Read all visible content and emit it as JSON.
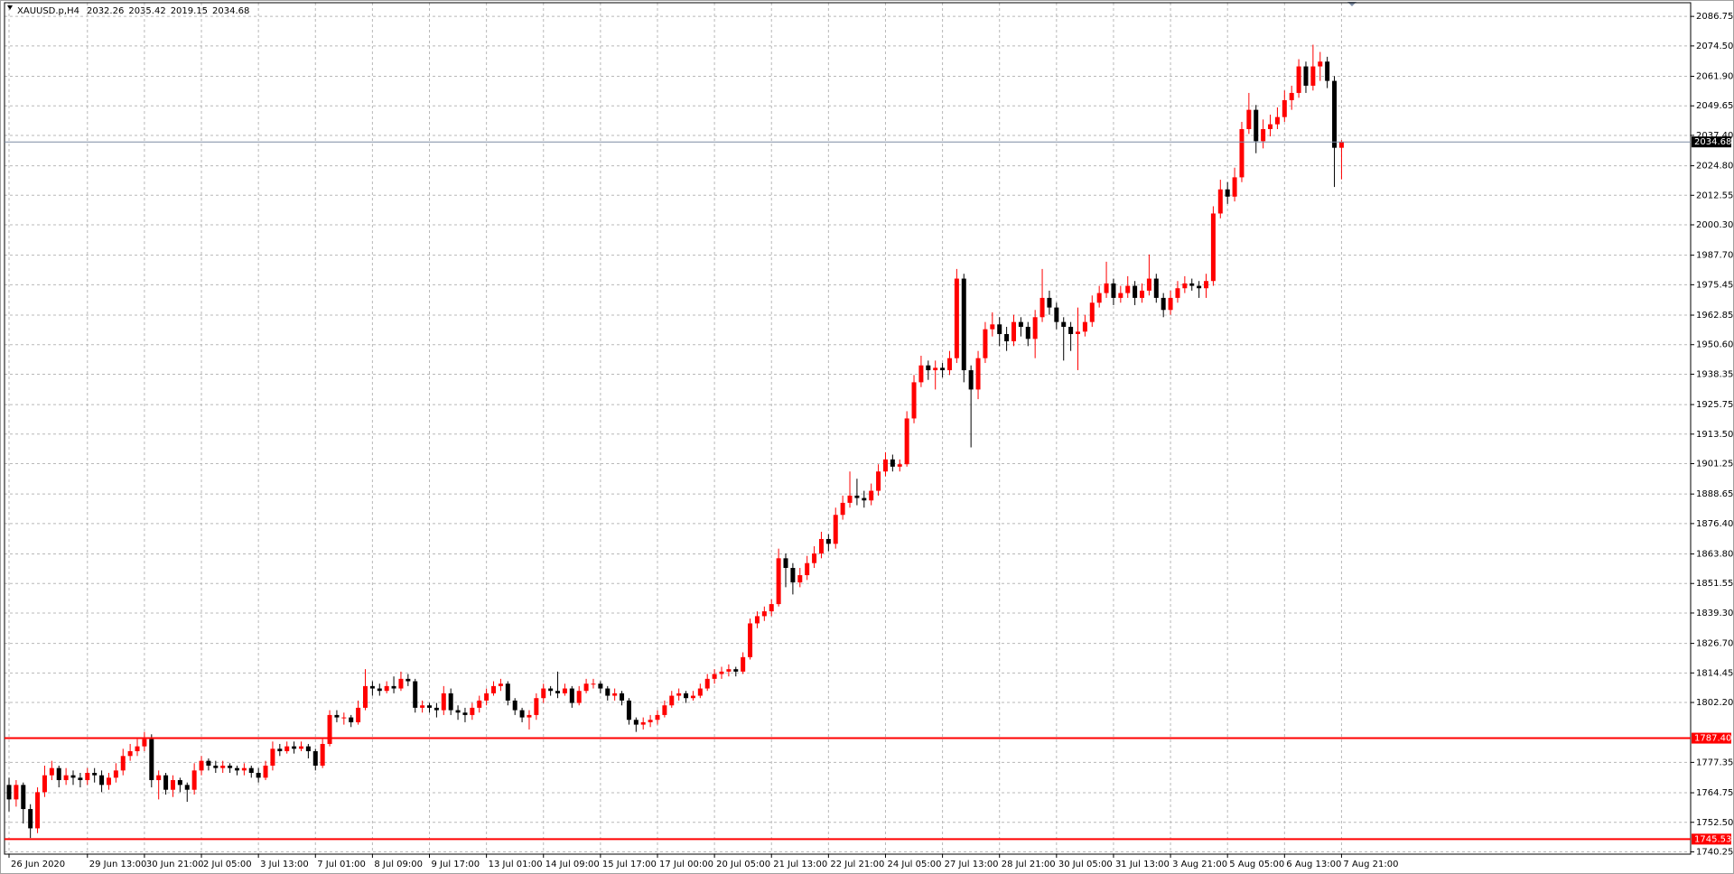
{
  "chart_data": {
    "type": "candlestick",
    "symbol": "XAUUSD.p,H4",
    "up_color": "#ff0000",
    "down_color": "#000000",
    "grid": true,
    "ylim": [
      1739.3,
      2091.3
    ],
    "yticks": [
      2086.75,
      {
        "value": 2074.5,
        "label": "2074.50"
      },
      {
        "value": 2061.9,
        "label": "2061.90"
      },
      2049.65,
      {
        "value": 2037.4,
        "label": "2037.40"
      },
      {
        "value": 2024.8,
        "label": "2024.80"
      },
      2012.55,
      {
        "value": 2000.3,
        "label": "2000.30"
      },
      {
        "value": 1987.7,
        "label": "1987.70"
      },
      1975.45,
      1962.85,
      {
        "value": 1950.6,
        "label": "1950.60"
      },
      1938.35,
      1925.75,
      {
        "value": 1913.5,
        "label": "1913.50"
      },
      1901.25,
      1888.65,
      {
        "value": 1876.4,
        "label": "1876.40"
      },
      {
        "value": 1863.8,
        "label": "1863.80"
      },
      1851.55,
      {
        "value": 1839.3,
        "label": "1839.30"
      },
      {
        "value": 1826.7,
        "label": "1826.70"
      },
      1814.45,
      {
        "value": 1802.2,
        "label": "1802.20"
      },
      1777.35,
      1764.75,
      {
        "value": 1752.5,
        "label": "1752.50"
      },
      1740.25
    ],
    "levels": [
      {
        "value": 1787.4,
        "label": "1787.40",
        "color": "#ff0000"
      },
      {
        "value": 1745.53,
        "color": "#ff0000"
      }
    ],
    "current_color": "#7d8ca3",
    "categories": [
      "26 Jun 2020",
      null,
      null,
      null,
      null,
      null,
      null,
      null,
      null,
      null,
      null,
      "29 Jun 13:00",
      null,
      null,
      null,
      null,
      null,
      null,
      null,
      "30 Jun 21:00",
      null,
      null,
      null,
      null,
      null,
      null,
      null,
      "2 Jul 05:00",
      null,
      null,
      null,
      null,
      null,
      null,
      null,
      "3 Jul 13:00",
      null,
      null,
      null,
      null,
      null,
      null,
      null,
      "7 Jul 01:00",
      null,
      null,
      null,
      null,
      null,
      null,
      null,
      "8 Jul 09:00",
      null,
      null,
      null,
      null,
      null,
      null,
      null,
      "9 Jul 17:00",
      null,
      null,
      null,
      null,
      null,
      null,
      null,
      "13 Jul 01:00",
      null,
      null,
      null,
      null,
      null,
      null,
      null,
      "14 Jul 09:00",
      null,
      null,
      null,
      null,
      null,
      null,
      null,
      "15 Jul 17:00",
      null,
      null,
      null,
      null,
      null,
      null,
      null,
      "17 Jul 00:00",
      null,
      null,
      null,
      null,
      null,
      null,
      null,
      "20 Jul 05:00",
      null,
      null,
      null,
      null,
      null,
      null,
      null,
      "21 Jul 13:00",
      null,
      null,
      null,
      null,
      null,
      null,
      null,
      "22 Jul 21:00",
      null,
      null,
      null,
      null,
      null,
      null,
      null,
      "24 Jul 05:00",
      null,
      null,
      null,
      null,
      null,
      null,
      null,
      "27 Jul 13:00",
      null,
      null,
      null,
      null,
      null,
      null,
      null,
      "28 Jul 21:00",
      null,
      null,
      null,
      null,
      null,
      null,
      null,
      "30 Jul 05:00",
      null,
      null,
      null,
      null,
      null,
      null,
      null,
      "31 Jul 13:00",
      null,
      null,
      null,
      null,
      null,
      null,
      null,
      "3 Aug 21:00",
      null,
      null,
      null,
      null,
      null,
      null,
      null,
      "5 Aug 05:00",
      null,
      null,
      null,
      null,
      null,
      null,
      null,
      "6 Aug 13:00",
      null,
      null,
      null,
      null,
      null,
      null,
      null,
      "7 Aug 21:00"
    ],
    "candles": [
      [
        1768,
        1771,
        1757,
        1762
      ],
      [
        1762,
        1770,
        1759,
        1768
      ],
      [
        1768,
        1769,
        1752,
        1758
      ],
      [
        1758,
        1760,
        1746,
        1750
      ],
      [
        1750,
        1767,
        1748,
        1765
      ],
      [
        1765,
        1776,
        1763,
        1772
      ],
      [
        1772,
        1778,
        1770,
        1775
      ],
      [
        1775,
        1776,
        1767,
        1770
      ],
      [
        1770,
        1775,
        1768,
        1772
      ],
      [
        1772,
        1774,
        1768,
        1771
      ],
      [
        1771,
        1773,
        1767,
        1770
      ],
      [
        1770,
        1775,
        1768,
        1773
      ],
      [
        1773,
        1775,
        1769,
        1772
      ],
      [
        1772,
        1774,
        1765,
        1768
      ],
      [
        1768,
        1773,
        1766,
        1771
      ],
      [
        1771,
        1777,
        1769,
        1774
      ],
      [
        1774,
        1783,
        1772,
        1780
      ],
      [
        1780,
        1785,
        1778,
        1782
      ],
      [
        1782,
        1787,
        1780,
        1784
      ],
      [
        1784,
        1790,
        1782,
        1787
      ],
      [
        1787,
        1789,
        1767,
        1770
      ],
      [
        1770,
        1774,
        1762,
        1772
      ],
      [
        1772,
        1773,
        1764,
        1766
      ],
      [
        1766,
        1772,
        1763,
        1770
      ],
      [
        1770,
        1771,
        1765,
        1768
      ],
      [
        1768,
        1769,
        1761,
        1766
      ],
      [
        1766,
        1777,
        1764,
        1774
      ],
      [
        1774,
        1780,
        1772,
        1778
      ],
      [
        1778,
        1779,
        1774,
        1776
      ],
      [
        1776,
        1778,
        1773,
        1775
      ],
      [
        1775,
        1778,
        1773,
        1776
      ],
      [
        1776,
        1777,
        1773,
        1775
      ],
      [
        1775,
        1776,
        1772,
        1774
      ],
      [
        1774,
        1777,
        1772,
        1775
      ],
      [
        1775,
        1776,
        1771,
        1773
      ],
      [
        1773,
        1775,
        1769,
        1771
      ],
      [
        1771,
        1778,
        1770,
        1776
      ],
      [
        1776,
        1786,
        1774,
        1783
      ],
      [
        1783,
        1785,
        1780,
        1782
      ],
      [
        1782,
        1786,
        1781,
        1784
      ],
      [
        1784,
        1786,
        1781,
        1783
      ],
      [
        1783,
        1786,
        1782,
        1784
      ],
      [
        1784,
        1785,
        1779,
        1782
      ],
      [
        1782,
        1783,
        1774,
        1776
      ],
      [
        1776,
        1787,
        1775,
        1785
      ],
      [
        1785,
        1799,
        1784,
        1797
      ],
      [
        1797,
        1799,
        1794,
        1796
      ],
      [
        1796,
        1798,
        1793,
        1796
      ],
      [
        1796,
        1797,
        1792,
        1794
      ],
      [
        1794,
        1803,
        1793,
        1800
      ],
      [
        1800,
        1816,
        1799,
        1809
      ],
      [
        1809,
        1811,
        1805,
        1808
      ],
      [
        1808,
        1810,
        1805,
        1807
      ],
      [
        1807,
        1811,
        1806,
        1809
      ],
      [
        1809,
        1813,
        1806,
        1808
      ],
      [
        1808,
        1815,
        1807,
        1812
      ],
      [
        1812,
        1814,
        1809,
        1811
      ],
      [
        1811,
        1812,
        1798,
        1800
      ],
      [
        1800,
        1803,
        1798,
        1801
      ],
      [
        1801,
        1802,
        1798,
        1800
      ],
      [
        1800,
        1802,
        1796,
        1799
      ],
      [
        1799,
        1809,
        1797,
        1806
      ],
      [
        1806,
        1808,
        1797,
        1799
      ],
      [
        1799,
        1801,
        1795,
        1798
      ],
      [
        1798,
        1800,
        1794,
        1797
      ],
      [
        1797,
        1802,
        1795,
        1800
      ],
      [
        1800,
        1805,
        1798,
        1803
      ],
      [
        1803,
        1808,
        1801,
        1806
      ],
      [
        1806,
        1811,
        1805,
        1809
      ],
      [
        1809,
        1812,
        1807,
        1810
      ],
      [
        1810,
        1811,
        1801,
        1803
      ],
      [
        1803,
        1804,
        1797,
        1799
      ],
      [
        1799,
        1800,
        1794,
        1796
      ],
      [
        1796,
        1799,
        1791,
        1797
      ],
      [
        1797,
        1806,
        1795,
        1804
      ],
      [
        1804,
        1810,
        1802,
        1808
      ],
      [
        1808,
        1809,
        1805,
        1807
      ],
      [
        1807,
        1815,
        1804,
        1806
      ],
      [
        1806,
        1810,
        1805,
        1808
      ],
      [
        1808,
        1809,
        1800,
        1802
      ],
      [
        1802,
        1809,
        1801,
        1807
      ],
      [
        1807,
        1812,
        1806,
        1810
      ],
      [
        1810,
        1812,
        1808,
        1810
      ],
      [
        1810,
        1811,
        1806,
        1808
      ],
      [
        1808,
        1809,
        1803,
        1805
      ],
      [
        1805,
        1808,
        1803,
        1806
      ],
      [
        1806,
        1807,
        1801,
        1803
      ],
      [
        1803,
        1804,
        1793,
        1795
      ],
      [
        1795,
        1796,
        1790,
        1793
      ],
      [
        1793,
        1796,
        1791,
        1794
      ],
      [
        1794,
        1797,
        1792,
        1795
      ],
      [
        1795,
        1799,
        1793,
        1797
      ],
      [
        1797,
        1803,
        1796,
        1801
      ],
      [
        1801,
        1807,
        1800,
        1805
      ],
      [
        1805,
        1808,
        1803,
        1806
      ],
      [
        1806,
        1807,
        1802,
        1804
      ],
      [
        1804,
        1807,
        1803,
        1805
      ],
      [
        1805,
        1810,
        1804,
        1808
      ],
      [
        1808,
        1814,
        1807,
        1812
      ],
      [
        1812,
        1816,
        1810,
        1814
      ],
      [
        1814,
        1817,
        1812,
        1815
      ],
      [
        1815,
        1818,
        1813,
        1816
      ],
      [
        1816,
        1817,
        1813,
        1815
      ],
      [
        1815,
        1823,
        1814,
        1821
      ],
      [
        1821,
        1837,
        1820,
        1835
      ],
      [
        1835,
        1840,
        1833,
        1838
      ],
      [
        1838,
        1842,
        1836,
        1840
      ],
      [
        1840,
        1845,
        1838,
        1843
      ],
      [
        1843,
        1866,
        1842,
        1862
      ],
      [
        1862,
        1864,
        1850,
        1858
      ],
      [
        1858,
        1860,
        1847,
        1852
      ],
      [
        1852,
        1858,
        1850,
        1855
      ],
      [
        1855,
        1863,
        1853,
        1860
      ],
      [
        1860,
        1867,
        1858,
        1864
      ],
      [
        1864,
        1873,
        1862,
        1870
      ],
      [
        1870,
        1872,
        1865,
        1868
      ],
      [
        1868,
        1883,
        1866,
        1880
      ],
      [
        1880,
        1888,
        1878,
        1885
      ],
      [
        1885,
        1898,
        1883,
        1888
      ],
      [
        1888,
        1895,
        1884,
        1887
      ],
      [
        1887,
        1890,
        1883,
        1886
      ],
      [
        1886,
        1893,
        1884,
        1890
      ],
      [
        1890,
        1901,
        1888,
        1898
      ],
      [
        1898,
        1906,
        1896,
        1903
      ],
      [
        1903,
        1905,
        1898,
        1900
      ],
      [
        1900,
        1903,
        1898,
        1901
      ],
      [
        1901,
        1923,
        1900,
        1920
      ],
      [
        1920,
        1938,
        1918,
        1935
      ],
      [
        1935,
        1946,
        1933,
        1942
      ],
      [
        1942,
        1944,
        1936,
        1940
      ],
      [
        1940,
        1944,
        1932,
        1941
      ],
      [
        1941,
        1943,
        1937,
        1940
      ],
      [
        1940,
        1948,
        1938,
        1945
      ],
      [
        1945,
        1982,
        1943,
        1978
      ],
      [
        1978,
        1980,
        1935,
        1940
      ],
      [
        1940,
        1942,
        1908,
        1932
      ],
      [
        1932,
        1948,
        1928,
        1945
      ],
      [
        1945,
        1960,
        1943,
        1957
      ],
      [
        1957,
        1964,
        1954,
        1959
      ],
      [
        1959,
        1962,
        1950,
        1955
      ],
      [
        1955,
        1958,
        1948,
        1952
      ],
      [
        1952,
        1963,
        1950,
        1960
      ],
      [
        1960,
        1962,
        1954,
        1958
      ],
      [
        1958,
        1960,
        1950,
        1953
      ],
      [
        1953,
        1965,
        1945,
        1962
      ],
      [
        1962,
        1982,
        1960,
        1970
      ],
      [
        1970,
        1973,
        1963,
        1966
      ],
      [
        1966,
        1968,
        1957,
        1960
      ],
      [
        1960,
        1962,
        1944,
        1958
      ],
      [
        1958,
        1960,
        1948,
        1955
      ],
      [
        1955,
        1966,
        1940,
        1956
      ],
      [
        1956,
        1963,
        1954,
        1960
      ],
      [
        1960,
        1971,
        1958,
        1968
      ],
      [
        1968,
        1975,
        1966,
        1972
      ],
      [
        1972,
        1985,
        1970,
        1976
      ],
      [
        1976,
        1978,
        1967,
        1970
      ],
      [
        1970,
        1975,
        1968,
        1972
      ],
      [
        1972,
        1979,
        1970,
        1975
      ],
      [
        1975,
        1977,
        1967,
        1970
      ],
      [
        1970,
        1976,
        1968,
        1973
      ],
      [
        1973,
        1988,
        1971,
        1978
      ],
      [
        1978,
        1980,
        1968,
        1970
      ],
      [
        1970,
        1972,
        1962,
        1965
      ],
      [
        1965,
        1973,
        1963,
        1970
      ],
      [
        1970,
        1977,
        1968,
        1974
      ],
      [
        1974,
        1979,
        1972,
        1976
      ],
      [
        1976,
        1978,
        1973,
        1975
      ],
      [
        1975,
        1977,
        1970,
        1974
      ],
      [
        1974,
        1980,
        1970,
        1977
      ],
      [
        1977,
        2008,
        1975,
        2005
      ],
      [
        2005,
        2019,
        2003,
        2015
      ],
      [
        2015,
        2018,
        2009,
        2012
      ],
      [
        2012,
        2024,
        2010,
        2020
      ],
      [
        2020,
        2043,
        2018,
        2040
      ],
      [
        2040,
        2055,
        2038,
        2048
      ],
      [
        2048,
        2050,
        2030,
        2035
      ],
      [
        2035,
        2044,
        2032,
        2040
      ],
      [
        2040,
        2046,
        2037,
        2042
      ],
      [
        2042,
        2049,
        2040,
        2045
      ],
      [
        2045,
        2056,
        2043,
        2052
      ],
      [
        2052,
        2058,
        2048,
        2055
      ],
      [
        2055,
        2069,
        2053,
        2066
      ],
      [
        2066,
        2068,
        2055,
        2058
      ],
      [
        2058,
        2075,
        2056,
        2066
      ],
      [
        2066,
        2072,
        2060,
        2068
      ],
      [
        2068,
        2070,
        2057,
        2060
      ],
      [
        2060,
        2062,
        2016,
        2032.26
      ],
      [
        2032.26,
        2035.42,
        2019.15,
        2034.68
      ]
    ]
  }
}
